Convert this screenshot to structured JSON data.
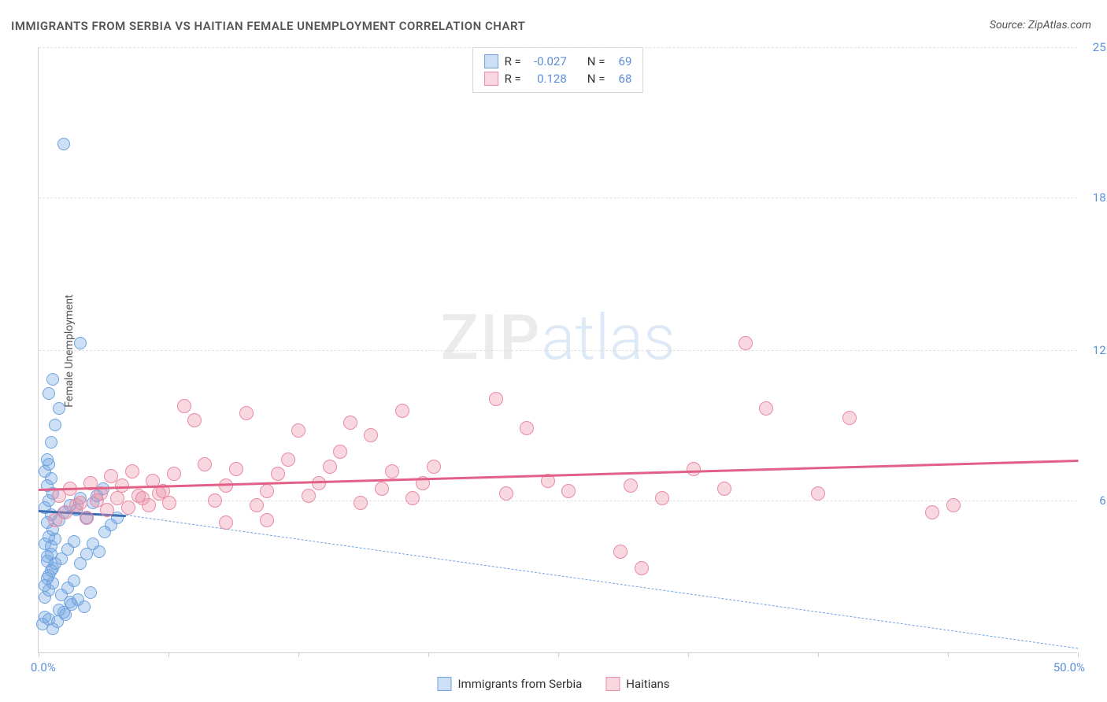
{
  "chart": {
    "title": "IMMIGRANTS FROM SERBIA VS HAITIAN FEMALE UNEMPLOYMENT CORRELATION CHART",
    "source_label": "Source: ",
    "source_value": "ZipAtlas.com",
    "y_axis_label": "Female Unemployment",
    "watermark_zip": "ZIP",
    "watermark_atlas": "atlas",
    "xlim": [
      0,
      50
    ],
    "ylim": [
      0,
      25
    ],
    "x_tick_positions": [
      0,
      6.25,
      12.5,
      18.75,
      25,
      31.25,
      37.5,
      43.75,
      50
    ],
    "x_tick_labels": {
      "left": "0.0%",
      "right": "50.0%"
    },
    "y_ticks": [
      {
        "value": 6.3,
        "label": "6.3%"
      },
      {
        "value": 12.5,
        "label": "12.5%"
      },
      {
        "value": 18.8,
        "label": "18.8%"
      },
      {
        "value": 25.0,
        "label": "25.0%"
      }
    ],
    "grid_color": "#e0e0e0",
    "background_color": "#ffffff",
    "axis_color": "#d0d0d0",
    "tick_label_color": "#5b8fd6",
    "series": [
      {
        "name": "Immigrants from Serbia",
        "fill_color": "rgba(111,163,224,0.35)",
        "stroke_color": "#6fa3e0",
        "trend_color": "#3b6fb5",
        "dashed_color": "#6fa3e0",
        "r_value": "-0.027",
        "n_value": "69",
        "marker_radius": 8,
        "trend": {
          "x1": 0,
          "y1": 5.9,
          "x2": 4.2,
          "y2": 5.7
        },
        "dashed": {
          "x1": 4.2,
          "y1": 5.7,
          "x2": 50,
          "y2": 0.2
        },
        "points": [
          [
            0.2,
            1.2
          ],
          [
            0.3,
            1.5
          ],
          [
            0.5,
            1.4
          ],
          [
            0.7,
            1.0
          ],
          [
            1.0,
            1.8
          ],
          [
            1.3,
            1.6
          ],
          [
            1.6,
            2.0
          ],
          [
            1.9,
            2.2
          ],
          [
            2.2,
            1.9
          ],
          [
            2.5,
            2.5
          ],
          [
            0.3,
            2.8
          ],
          [
            0.5,
            3.2
          ],
          [
            0.7,
            3.5
          ],
          [
            0.4,
            3.8
          ],
          [
            0.6,
            4.1
          ],
          [
            0.3,
            4.5
          ],
          [
            0.5,
            4.8
          ],
          [
            0.7,
            5.1
          ],
          [
            0.4,
            5.4
          ],
          [
            0.6,
            5.7
          ],
          [
            0.3,
            6.0
          ],
          [
            0.5,
            6.3
          ],
          [
            0.7,
            6.6
          ],
          [
            0.4,
            6.9
          ],
          [
            0.6,
            7.2
          ],
          [
            1.0,
            5.5
          ],
          [
            1.2,
            5.8
          ],
          [
            1.5,
            6.1
          ],
          [
            1.8,
            5.9
          ],
          [
            2.0,
            6.4
          ],
          [
            2.3,
            5.6
          ],
          [
            2.6,
            6.2
          ],
          [
            0.4,
            8.0
          ],
          [
            0.6,
            8.7
          ],
          [
            0.8,
            9.4
          ],
          [
            1.0,
            10.1
          ],
          [
            0.5,
            10.7
          ],
          [
            0.7,
            11.3
          ],
          [
            0.4,
            4.0
          ],
          [
            0.6,
            4.4
          ],
          [
            0.8,
            4.7
          ],
          [
            1.1,
            3.9
          ],
          [
            1.4,
            4.3
          ],
          [
            1.7,
            4.6
          ],
          [
            2.0,
            3.7
          ],
          [
            2.3,
            4.1
          ],
          [
            2.6,
            4.5
          ],
          [
            2.9,
            4.2
          ],
          [
            3.2,
            5.0
          ],
          [
            3.5,
            5.3
          ],
          [
            3.8,
            5.6
          ],
          [
            0.3,
            2.3
          ],
          [
            0.5,
            2.6
          ],
          [
            0.7,
            2.9
          ],
          [
            0.4,
            3.1
          ],
          [
            0.6,
            3.4
          ],
          [
            0.8,
            3.7
          ],
          [
            1.1,
            2.4
          ],
          [
            1.4,
            2.7
          ],
          [
            1.7,
            3.0
          ],
          [
            0.9,
            1.3
          ],
          [
            1.2,
            1.7
          ],
          [
            1.5,
            2.1
          ],
          [
            0.3,
            7.5
          ],
          [
            0.5,
            7.8
          ],
          [
            2.0,
            12.8
          ],
          [
            1.2,
            21.0
          ],
          [
            2.8,
            6.5
          ],
          [
            3.1,
            6.8
          ]
        ]
      },
      {
        "name": "Haitians",
        "fill_color": "rgba(235,140,165,0.35)",
        "stroke_color": "#e88ca5",
        "trend_color": "#e26088",
        "r_value": "0.128",
        "n_value": "68",
        "marker_radius": 9,
        "trend": {
          "x1": 0,
          "y1": 6.8,
          "x2": 50,
          "y2": 8.0
        },
        "points": [
          [
            1.0,
            6.5
          ],
          [
            1.5,
            6.8
          ],
          [
            2.0,
            6.2
          ],
          [
            2.5,
            7.0
          ],
          [
            3.0,
            6.6
          ],
          [
            3.5,
            7.3
          ],
          [
            4.0,
            6.9
          ],
          [
            4.5,
            7.5
          ],
          [
            5.0,
            6.4
          ],
          [
            5.5,
            7.1
          ],
          [
            6.0,
            6.7
          ],
          [
            6.5,
            7.4
          ],
          [
            7.0,
            10.2
          ],
          [
            7.5,
            9.6
          ],
          [
            8.0,
            7.8
          ],
          [
            8.5,
            6.3
          ],
          [
            9.0,
            6.9
          ],
          [
            9.5,
            7.6
          ],
          [
            10.0,
            9.9
          ],
          [
            10.5,
            6.1
          ],
          [
            11.0,
            6.7
          ],
          [
            11.5,
            7.4
          ],
          [
            12.0,
            8.0
          ],
          [
            12.5,
            9.2
          ],
          [
            13.0,
            6.5
          ],
          [
            13.5,
            7.0
          ],
          [
            14.0,
            7.7
          ],
          [
            14.5,
            8.3
          ],
          [
            15.0,
            9.5
          ],
          [
            15.5,
            6.2
          ],
          [
            16.0,
            9.0
          ],
          [
            16.5,
            6.8
          ],
          [
            17.0,
            7.5
          ],
          [
            17.5,
            10.0
          ],
          [
            18.0,
            6.4
          ],
          [
            18.5,
            7.0
          ],
          [
            19.0,
            7.7
          ],
          [
            22.0,
            10.5
          ],
          [
            22.5,
            6.6
          ],
          [
            23.5,
            9.3
          ],
          [
            24.5,
            7.1
          ],
          [
            25.5,
            6.7
          ],
          [
            28.0,
            4.2
          ],
          [
            28.5,
            6.9
          ],
          [
            29.0,
            3.5
          ],
          [
            30.0,
            6.4
          ],
          [
            31.5,
            7.6
          ],
          [
            33.0,
            6.8
          ],
          [
            34.0,
            12.8
          ],
          [
            35.0,
            10.1
          ],
          [
            37.5,
            6.6
          ],
          [
            39.0,
            9.7
          ],
          [
            43.0,
            5.8
          ],
          [
            44.0,
            6.1
          ],
          [
            0.8,
            5.5
          ],
          [
            1.3,
            5.8
          ],
          [
            1.8,
            6.1
          ],
          [
            2.3,
            5.6
          ],
          [
            2.8,
            6.3
          ],
          [
            3.3,
            5.9
          ],
          [
            3.8,
            6.4
          ],
          [
            4.3,
            6.0
          ],
          [
            4.8,
            6.5
          ],
          [
            5.3,
            6.1
          ],
          [
            5.8,
            6.6
          ],
          [
            6.3,
            6.2
          ],
          [
            9.0,
            5.4
          ],
          [
            11.0,
            5.5
          ]
        ]
      }
    ],
    "stats_legend": {
      "r_label": "R =",
      "n_label": "N ="
    },
    "bottom_legend": {
      "label_a": "Immigrants from Serbia",
      "label_b": "Haitians"
    }
  }
}
